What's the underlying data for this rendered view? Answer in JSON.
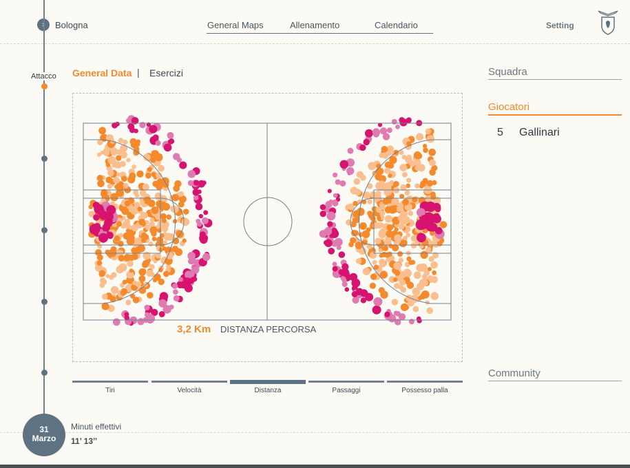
{
  "header": {
    "back_icon": "chevron-right-icon",
    "team": "Bologna",
    "nav": [
      "General Maps",
      "Allenamento",
      "Calendario"
    ],
    "setting": "Setting",
    "logo_icon": "shield-bird-icon"
  },
  "timeline": {
    "label": "Attacco",
    "date_day": "31",
    "date_month": "Marzo"
  },
  "subtabs": {
    "general": "General Data",
    "separator": "|",
    "esercizi": "Esercizi"
  },
  "stat": {
    "value": "3,2 Km",
    "label": "DISTANZA PERCORSA"
  },
  "metric_tabs": [
    "Tiri",
    "Velocità",
    "Distanza",
    "Passaggi",
    "Possesso palla"
  ],
  "active_metric": "Distanza",
  "footer": {
    "minuti_label": "Minuti effettivi",
    "minuti_value": "11’ 13’’"
  },
  "right_panel": {
    "squadra": "Squadra",
    "giocatori": "Giocatori",
    "player_number": "5",
    "player_name": "Gallinari",
    "community": "Community"
  },
  "colors": {
    "accent": "#f58a2d",
    "slate": "#5f7282",
    "heat_light": "#fbbf8f",
    "heat_orange": "#f58a2d",
    "heat_pink": "#df7bb0",
    "heat_magenta": "#d6146f",
    "background": "#fbfaf4"
  }
}
